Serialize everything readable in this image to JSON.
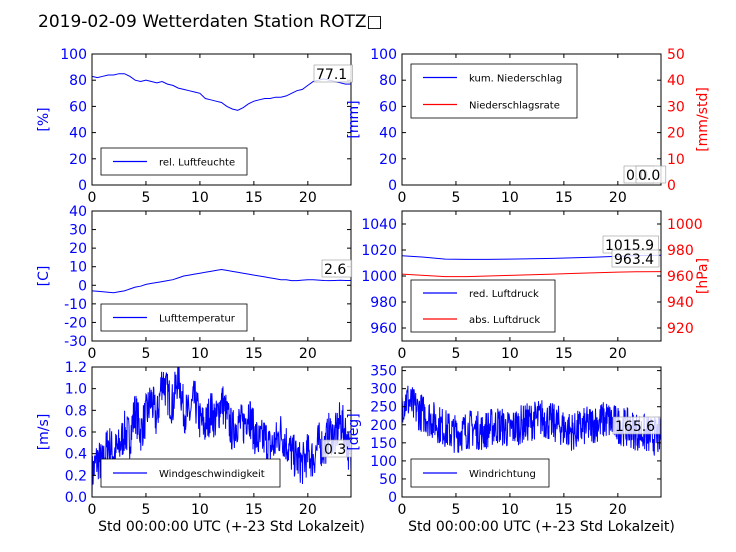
{
  "figure": {
    "suptitle": "2019-02-09 Wetterdaten Station ROTZ□"
  },
  "chart_data": [
    {
      "id": "humidity",
      "type": "line",
      "xlim": [
        0,
        24
      ],
      "xticks": [
        0,
        5,
        10,
        15,
        20
      ],
      "ylim": [
        0,
        100
      ],
      "yticks": [
        0,
        20,
        40,
        60,
        80,
        100
      ],
      "ylabel": "[%]",
      "series": [
        {
          "name": "rel. Luftfeuchte",
          "color": "#0000ff",
          "x": [
            0,
            0.5,
            1,
            1.5,
            2,
            2.5,
            3,
            3.5,
            4,
            4.5,
            5,
            5.5,
            6,
            6.5,
            7,
            7.5,
            8,
            8.5,
            9,
            9.5,
            10,
            10.5,
            11,
            11.5,
            12,
            12.5,
            13,
            13.5,
            14,
            14.5,
            15,
            15.5,
            16,
            16.5,
            17,
            17.5,
            18,
            18.5,
            19,
            19.5,
            20,
            20.5,
            21,
            21.5,
            22,
            22.5,
            23,
            23.5,
            24
          ],
          "y": [
            83,
            82,
            83,
            84,
            84,
            85,
            85,
            83,
            80,
            79,
            80,
            79,
            78,
            79,
            77,
            76,
            74,
            73,
            72,
            71,
            70,
            66,
            65,
            64,
            63,
            60,
            58,
            57,
            59,
            62,
            64,
            65,
            66,
            66,
            67,
            67,
            68,
            70,
            72,
            73,
            76,
            79,
            80,
            81,
            80,
            79,
            78,
            77,
            77.1
          ]
        }
      ],
      "annotation": "77.1",
      "annotation_x": 22.2,
      "annotation_y": 80,
      "legend_position": "lower-left"
    },
    {
      "id": "precip",
      "type": "line",
      "xlim": [
        0,
        24
      ],
      "xticks": [
        0,
        5,
        10,
        15,
        20
      ],
      "ylim": [
        0,
        100
      ],
      "yticks": [
        0,
        20,
        40,
        60,
        80,
        100
      ],
      "ylim_right": [
        0,
        50
      ],
      "yticks_right": [
        0,
        10,
        20,
        30,
        40,
        50
      ],
      "ylabel": "[mm]",
      "ylabel_right": "[mm/std]",
      "series": [
        {
          "name": "kum. Niederschlag",
          "color": "#0000ff",
          "axis": "left",
          "x": [
            0,
            24
          ],
          "y": [
            0,
            0
          ]
        },
        {
          "name": "Niederschlagsrate",
          "color": "#ff0000",
          "axis": "right",
          "x": [
            0,
            24
          ],
          "y": [
            0,
            0
          ]
        }
      ],
      "annotations": [
        "0.0",
        "0.0"
      ],
      "legend_position": "upper-left"
    },
    {
      "id": "temperature",
      "type": "line",
      "xlim": [
        0,
        24
      ],
      "xticks": [
        0,
        5,
        10,
        15,
        20
      ],
      "ylim": [
        -30,
        40
      ],
      "yticks": [
        -30,
        -20,
        -10,
        0,
        10,
        20,
        30,
        40
      ],
      "ylabel": "[C]",
      "series": [
        {
          "name": "Lufttemperatur",
          "color": "#0000ff",
          "x": [
            0,
            0.5,
            1,
            1.5,
            2,
            2.5,
            3,
            3.5,
            4,
            4.5,
            5,
            5.5,
            6,
            6.5,
            7,
            7.5,
            8,
            8.5,
            9,
            9.5,
            10,
            10.5,
            11,
            11.5,
            12,
            12.5,
            13,
            13.5,
            14,
            14.5,
            15,
            15.5,
            16,
            16.5,
            17,
            17.5,
            18,
            18.5,
            19,
            19.5,
            20,
            20.5,
            21,
            21.5,
            22,
            22.5,
            23,
            23.5,
            24
          ],
          "y": [
            -3,
            -3.2,
            -3.5,
            -3.8,
            -4,
            -3.5,
            -3,
            -2,
            -1,
            -0.5,
            0.5,
            1,
            1.5,
            2,
            2.5,
            3,
            4,
            5,
            5.5,
            6,
            6.5,
            7,
            7.5,
            8,
            8.5,
            8,
            7.5,
            7,
            6.5,
            6,
            5.5,
            5,
            4.5,
            4,
            3.5,
            3,
            3,
            2.5,
            2.5,
            2.8,
            3,
            3,
            2.8,
            2.6,
            2.5,
            2.6,
            2.7,
            2.6,
            2.6
          ]
        }
      ],
      "annotation": "2.6",
      "annotation_x": 22.6,
      "annotation_y": 2.6,
      "legend_position": "lower-left"
    },
    {
      "id": "pressure",
      "type": "line",
      "xlim": [
        0,
        24
      ],
      "xticks": [
        0,
        5,
        10,
        15,
        20
      ],
      "ylim": [
        950,
        1050
      ],
      "yticks": [
        960,
        980,
        1000,
        1020,
        1040
      ],
      "ylim_right": [
        910,
        1010
      ],
      "yticks_right": [
        920,
        940,
        960,
        980,
        1000
      ],
      "ylabel_right": "[hPa]",
      "series": [
        {
          "name": "red. Luftdruck",
          "color": "#0000ff",
          "axis": "left",
          "x": [
            0,
            2,
            4,
            6,
            8,
            10,
            12,
            14,
            16,
            18,
            20,
            22,
            24
          ],
          "y": [
            1015.5,
            1014.5,
            1013,
            1012.8,
            1012.8,
            1013,
            1013.2,
            1013.5,
            1014,
            1014.5,
            1015.2,
            1015.8,
            1015.9
          ]
        },
        {
          "name": "abs. Luftdruck",
          "color": "#ff0000",
          "axis": "right",
          "x": [
            0,
            2,
            4,
            6,
            8,
            10,
            12,
            14,
            16,
            18,
            20,
            22,
            24
          ],
          "y": [
            961.5,
            960.5,
            959.5,
            959.5,
            960,
            960.5,
            961,
            961.5,
            962,
            962.5,
            963,
            963.3,
            963.4
          ]
        }
      ],
      "annotations": [
        "1015.9",
        "963.4"
      ],
      "legend_position": "lower-left"
    },
    {
      "id": "windspeed",
      "type": "line",
      "xlim": [
        0,
        24
      ],
      "xticks": [
        0,
        5,
        10,
        15,
        20
      ],
      "ylim": [
        0,
        1.2
      ],
      "yticks": [
        0.0,
        0.2,
        0.4,
        0.6,
        0.8,
        1.0,
        1.2
      ],
      "ytick_labels": [
        "0.0",
        "0.2",
        "0.4",
        "0.6",
        "0.8",
        "1.0",
        "1.2"
      ],
      "ylabel": "[m/s]",
      "xlabel": "Std 00:00:00 UTC (+-23 Std Lokalzeit)",
      "series": [
        {
          "name": "Windgeschwindigkeit",
          "color": "#0000ff",
          "x": [
            0,
            0.5,
            1,
            1.5,
            2,
            2.5,
            3,
            3.5,
            4,
            4.5,
            5,
            5.5,
            6,
            6.5,
            7,
            7.5,
            8,
            8.5,
            9,
            9.5,
            10,
            10.5,
            11,
            11.5,
            12,
            12.5,
            13,
            13.5,
            14,
            14.5,
            15,
            15.5,
            16,
            16.5,
            17,
            17.5,
            18,
            18.5,
            19,
            19.5,
            20,
            20.5,
            21,
            21.5,
            22,
            22.5,
            23,
            23.5,
            24
          ],
          "y": [
            0.2,
            0.35,
            0.3,
            0.5,
            0.4,
            0.45,
            0.6,
            0.55,
            0.8,
            0.6,
            0.75,
            0.9,
            0.7,
            1.1,
            0.95,
            0.85,
            1.15,
            0.8,
            0.75,
            0.9,
            0.7,
            0.65,
            0.8,
            0.7,
            0.9,
            0.75,
            0.6,
            0.7,
            0.65,
            0.8,
            0.6,
            0.5,
            0.55,
            0.45,
            0.5,
            0.6,
            0.5,
            0.4,
            0.35,
            0.3,
            0.4,
            0.35,
            0.5,
            0.45,
            0.6,
            0.55,
            0.7,
            0.6,
            0.3
          ],
          "noise": 0.2
        }
      ],
      "annotation": "0.3",
      "annotation_x": 22.6,
      "annotation_y": 0.3,
      "legend_position": "lower-left"
    },
    {
      "id": "winddir",
      "type": "line",
      "xlim": [
        0,
        24
      ],
      "xticks": [
        0,
        5,
        10,
        15,
        20
      ],
      "ylim": [
        0,
        360
      ],
      "yticks": [
        0,
        50,
        100,
        150,
        200,
        250,
        300,
        350
      ],
      "ylabel": "[deg]",
      "xlabel": "Std 00:00:00 UTC (+-23 Std Lokalzeit)",
      "series": [
        {
          "name": "Windrichtung",
          "color": "#0000ff",
          "x": [
            0,
            0.5,
            1,
            1.5,
            2,
            2.5,
            3,
            3.5,
            4,
            4.5,
            5,
            5.5,
            6,
            6.5,
            7,
            7.5,
            8,
            8.5,
            9,
            9.5,
            10,
            10.5,
            11,
            11.5,
            12,
            12.5,
            13,
            13.5,
            14,
            14.5,
            15,
            15.5,
            16,
            16.5,
            17,
            17.5,
            18,
            18.5,
            19,
            19.5,
            20,
            20.5,
            21,
            21.5,
            22,
            22.5,
            23,
            23.5,
            24
          ],
          "y": [
            260,
            270,
            250,
            240,
            230,
            220,
            210,
            200,
            190,
            180,
            175,
            180,
            185,
            190,
            185,
            180,
            190,
            195,
            200,
            190,
            185,
            195,
            200,
            205,
            210,
            215,
            220,
            210,
            205,
            200,
            190,
            185,
            180,
            190,
            195,
            200,
            205,
            210,
            215,
            205,
            200,
            195,
            190,
            185,
            180,
            175,
            170,
            168,
            165.6
          ],
          "noise": 55
        }
      ],
      "annotation": "165.6",
      "annotation_x": 21.8,
      "annotation_y": 165.6,
      "legend_position": "lower-left"
    }
  ]
}
